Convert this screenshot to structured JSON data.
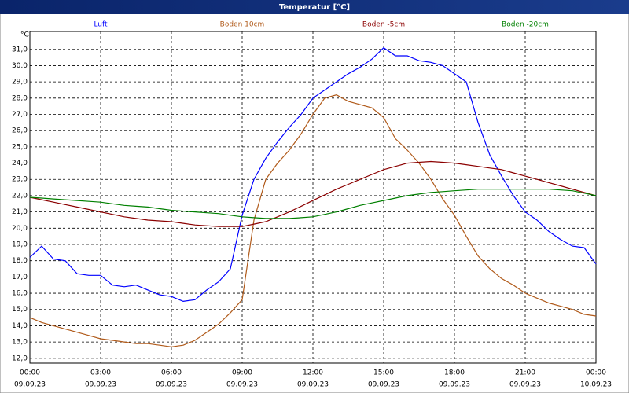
{
  "chart_data": {
    "type": "line",
    "title": "Temperatur [°C]",
    "y_unit": "°C",
    "x": [
      0,
      0.5,
      1,
      1.5,
      2,
      2.5,
      3,
      3.5,
      4,
      4.5,
      5,
      5.5,
      6,
      6.5,
      7,
      7.5,
      8,
      8.5,
      9,
      9.5,
      10,
      10.5,
      11,
      11.5,
      12,
      12.5,
      13,
      13.5,
      14,
      14.5,
      15,
      15.5,
      16,
      16.5,
      17,
      17.5,
      18,
      18.5,
      19,
      19.5,
      20,
      20.5,
      21,
      21.5,
      22,
      22.5,
      23,
      23.5,
      24
    ],
    "xlim": [
      0,
      24
    ],
    "xticks": [
      {
        "value": 0,
        "label": "00:00"
      },
      {
        "value": 3,
        "label": "03:00"
      },
      {
        "value": 6,
        "label": "06:00"
      },
      {
        "value": 9,
        "label": "09:00"
      },
      {
        "value": 12,
        "label": "12:00"
      },
      {
        "value": 15,
        "label": "15:00"
      },
      {
        "value": 18,
        "label": "18:00"
      },
      {
        "value": 21,
        "label": "21:00"
      },
      {
        "value": 24,
        "label": "00:00"
      }
    ],
    "xtick_dates": [
      "09.09.23",
      "09.09.23",
      "09.09.23",
      "09.09.23",
      "09.09.23",
      "09.09.23",
      "09.09.23",
      "09.09.23",
      "10.09.23"
    ],
    "ylim": [
      11.7,
      32.1
    ],
    "yticks": [
      {
        "value": 12,
        "label": "12,0"
      },
      {
        "value": 13,
        "label": "13,0"
      },
      {
        "value": 14,
        "label": "14,0"
      },
      {
        "value": 15,
        "label": "15,0"
      },
      {
        "value": 16,
        "label": "16,0"
      },
      {
        "value": 17,
        "label": "17,0"
      },
      {
        "value": 18,
        "label": "18,0"
      },
      {
        "value": 19,
        "label": "19,0"
      },
      {
        "value": 20,
        "label": "20,0"
      },
      {
        "value": 21,
        "label": "21,0"
      },
      {
        "value": 22,
        "label": "22,0"
      },
      {
        "value": 23,
        "label": "23,0"
      },
      {
        "value": 24,
        "label": "24,0"
      },
      {
        "value": 25,
        "label": "25,0"
      },
      {
        "value": 26,
        "label": "26,0"
      },
      {
        "value": 27,
        "label": "27,0"
      },
      {
        "value": 28,
        "label": "28,0"
      },
      {
        "value": 29,
        "label": "29,0"
      },
      {
        "value": 30,
        "label": "30,0"
      },
      {
        "value": 31,
        "label": "31,0"
      }
    ],
    "grid": true,
    "series": [
      {
        "name": "Luft",
        "color": "#0000ff",
        "values": [
          18.2,
          18.9,
          18.1,
          18.0,
          17.2,
          17.1,
          17.1,
          16.5,
          16.4,
          16.5,
          16.2,
          15.9,
          15.8,
          15.5,
          15.6,
          16.2,
          16.7,
          17.5,
          20.8,
          23.0,
          24.3,
          25.3,
          26.2,
          27.0,
          28.0,
          28.5,
          29.0,
          29.5,
          29.9,
          30.4,
          31.1,
          30.6,
          30.6,
          30.3,
          30.2,
          30.0,
          29.5,
          29.0,
          26.5,
          24.5,
          23.2,
          22.0,
          21.0,
          20.5,
          19.8,
          19.3,
          18.9,
          18.8,
          17.8
        ]
      },
      {
        "name": "Boden 10cm",
        "color": "#b05a1a",
        "values": [
          14.5,
          14.2,
          14.0,
          13.8,
          13.6,
          13.4,
          13.2,
          13.1,
          13.0,
          12.9,
          12.9,
          12.8,
          12.7,
          12.8,
          13.1,
          13.6,
          14.1,
          14.8,
          15.6,
          20.5,
          23.0,
          24.0,
          24.8,
          25.8,
          27.0,
          28.0,
          28.2,
          27.8,
          27.6,
          27.4,
          26.8,
          25.5,
          24.8,
          24.0,
          23.0,
          21.8,
          20.8,
          19.5,
          18.3,
          17.5,
          16.9,
          16.5,
          16.0,
          15.7,
          15.4,
          15.2,
          15.0,
          14.7,
          14.6
        ]
      },
      {
        "name": "Boden -5cm",
        "color": "#8b0000",
        "values": [
          21.9,
          21.75,
          21.6,
          21.45,
          21.3,
          21.15,
          21.0,
          20.85,
          20.7,
          20.6,
          20.5,
          20.45,
          20.4,
          20.3,
          20.2,
          20.15,
          20.1,
          20.1,
          20.1,
          20.25,
          20.4,
          20.7,
          21.0,
          21.35,
          21.7,
          22.05,
          22.4,
          22.7,
          23.0,
          23.3,
          23.6,
          23.8,
          24.0,
          24.05,
          24.1,
          24.05,
          24.0,
          23.9,
          23.8,
          23.7,
          23.6,
          23.4,
          23.2,
          23.0,
          22.8,
          22.6,
          22.4,
          22.2,
          22.0
        ]
      },
      {
        "name": "Boden -20cm",
        "color": "#008000",
        "values": [
          21.9,
          21.85,
          21.8,
          21.75,
          21.7,
          21.65,
          21.6,
          21.5,
          21.4,
          21.35,
          21.3,
          21.2,
          21.1,
          21.05,
          21.0,
          20.95,
          20.9,
          20.8,
          20.7,
          20.65,
          20.6,
          20.6,
          20.6,
          20.65,
          20.7,
          20.85,
          21.0,
          21.2,
          21.4,
          21.55,
          21.7,
          21.85,
          22.0,
          22.1,
          22.2,
          22.25,
          22.3,
          22.35,
          22.4,
          22.4,
          22.4,
          22.4,
          22.4,
          22.4,
          22.4,
          22.35,
          22.3,
          22.15,
          22.0
        ]
      }
    ]
  }
}
